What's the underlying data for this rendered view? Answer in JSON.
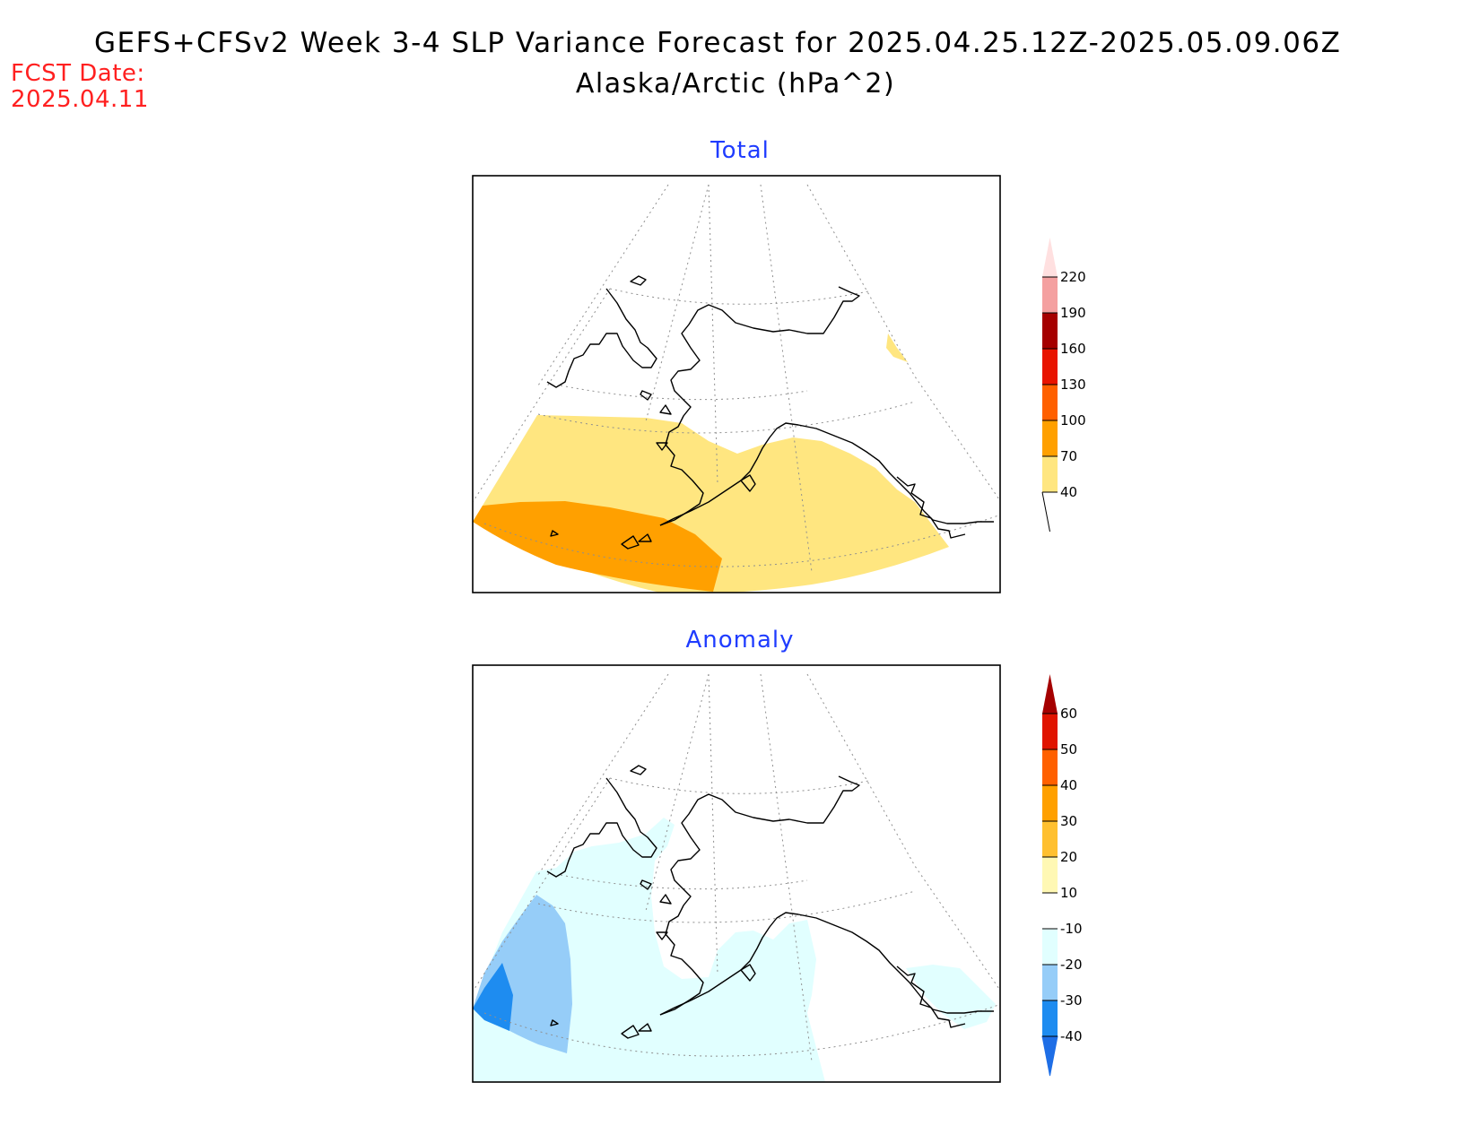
{
  "header": {
    "title": "GEFS+CFSv2 Week 3-4 SLP Variance Forecast for 2025.04.25.12Z-2025.05.09.06Z",
    "subtitle": "Alaska/Arctic (hPa^2)",
    "fcst_label": "FCST Date:",
    "fcst_value": "2025.04.11"
  },
  "panels": [
    {
      "title": "Total",
      "colorbar": {
        "levels": [
          "40",
          "70",
          "100",
          "130",
          "160",
          "190",
          "220"
        ],
        "colors": [
          "#ffffff",
          "#ffe680",
          "#ffa000",
          "#ff6000",
          "#e81400",
          "#a50000",
          "#f4a0a0",
          "#ffe0e0"
        ]
      }
    },
    {
      "title": "Anomaly",
      "colorbar": {
        "levels": [
          "-40",
          "-30",
          "-20",
          "-10",
          "10",
          "20",
          "30",
          "40",
          "50",
          "60"
        ],
        "colors": [
          "#1e6ee6",
          "#1e8cf0",
          "#96cdf8",
          "#e1ffff",
          "#ffffff",
          "#fff8b4",
          "#ffc030",
          "#ffa000",
          "#ff6000",
          "#e01400",
          "#a50000"
        ]
      }
    }
  ]
}
